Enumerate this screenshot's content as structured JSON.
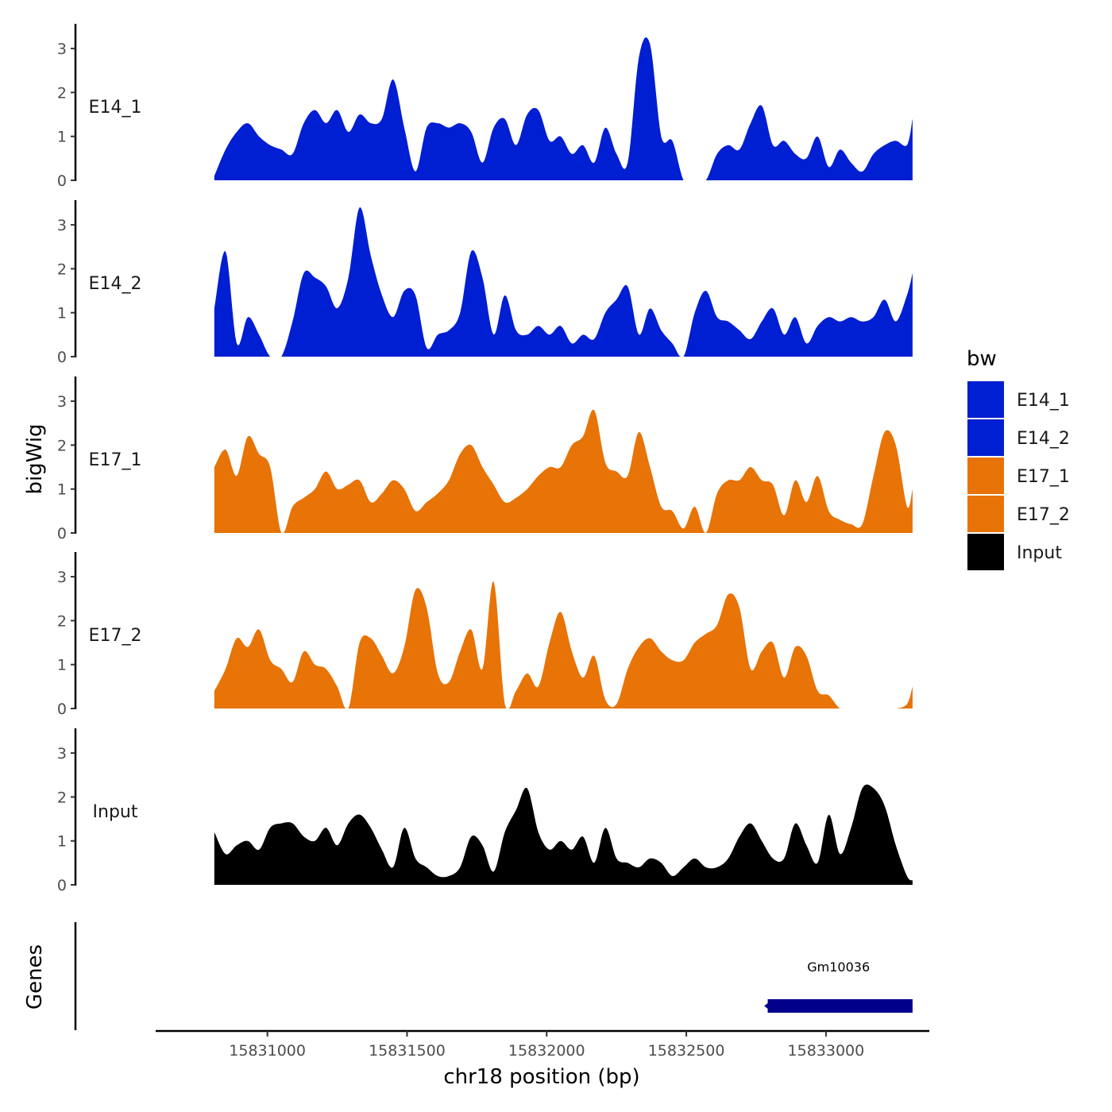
{
  "chart_data": {
    "type": "area",
    "xlabel": "chr18 position (bp)",
    "ylabel": "bigWig",
    "genes_label": "Genes",
    "x_range": [
      15830600,
      15833370
    ],
    "y_range": [
      0,
      3.5
    ],
    "x_ticks": [
      15831000,
      15831500,
      15832000,
      15832500,
      15833000
    ],
    "x_tick_labels": [
      "15831000",
      "15831500",
      "15832000",
      "15832500",
      "15833000"
    ],
    "y_ticks": [
      0,
      1,
      2,
      3
    ],
    "y_tick_labels": [
      "0",
      "1",
      "2",
      "3"
    ],
    "legend": {
      "title": "bw",
      "entries": [
        {
          "label": "E14_1",
          "color": "#001ed2"
        },
        {
          "label": "E14_2",
          "color": "#001ed2"
        },
        {
          "label": "E17_1",
          "color": "#e87306"
        },
        {
          "label": "E17_2",
          "color": "#e87306"
        },
        {
          "label": "Input",
          "color": "#000000"
        }
      ]
    },
    "x": [
      15830810,
      15830850,
      15830890,
      15830930,
      15830970,
      15831010,
      15831050,
      15831090,
      15831130,
      15831170,
      15831210,
      15831250,
      15831290,
      15831330,
      15831370,
      15831410,
      15831450,
      15831490,
      15831530,
      15831570,
      15831610,
      15831650,
      15831690,
      15831730,
      15831770,
      15831810,
      15831850,
      15831890,
      15831930,
      15831970,
      15832010,
      15832050,
      15832090,
      15832130,
      15832170,
      15832210,
      15832250,
      15832290,
      15832330,
      15832370,
      15832410,
      15832450,
      15832490,
      15832530,
      15832570,
      15832610,
      15832650,
      15832690,
      15832730,
      15832770,
      15832810,
      15832850,
      15832890,
      15832930,
      15832970,
      15833010,
      15833050,
      15833090,
      15833130,
      15833170,
      15833210,
      15833250,
      15833290,
      15833310
    ],
    "series": [
      {
        "name": "E14_1",
        "color": "#001ed2",
        "values": [
          0.1,
          0.7,
          1.1,
          1.3,
          1.0,
          0.8,
          0.7,
          0.6,
          1.3,
          1.6,
          1.3,
          1.6,
          1.1,
          1.5,
          1.3,
          1.4,
          2.3,
          1.2,
          0.2,
          1.2,
          1.3,
          1.2,
          1.3,
          1.1,
          0.4,
          1.2,
          1.4,
          0.8,
          1.5,
          1.6,
          0.9,
          1.0,
          0.6,
          0.8,
          0.4,
          1.2,
          0.6,
          0.4,
          2.8,
          3.1,
          1.0,
          0.9,
          0.0,
          0.0,
          0.0,
          0.6,
          0.8,
          0.7,
          1.3,
          1.7,
          0.8,
          0.9,
          0.6,
          0.5,
          1.0,
          0.3,
          0.7,
          0.4,
          0.2,
          0.6,
          0.8,
          0.9,
          0.8,
          1.4
        ]
      },
      {
        "name": "E14_2",
        "color": "#001ed2",
        "values": [
          1.1,
          2.4,
          0.3,
          0.9,
          0.5,
          0.0,
          0.0,
          0.8,
          1.9,
          1.8,
          1.6,
          1.1,
          1.8,
          3.4,
          2.3,
          1.4,
          0.9,
          1.5,
          1.4,
          0.2,
          0.5,
          0.6,
          1.0,
          2.4,
          1.8,
          0.5,
          1.4,
          0.6,
          0.5,
          0.7,
          0.5,
          0.7,
          0.3,
          0.5,
          0.4,
          1.0,
          1.3,
          1.6,
          0.5,
          1.1,
          0.6,
          0.3,
          0.0,
          1.0,
          1.5,
          0.9,
          0.8,
          0.6,
          0.4,
          0.8,
          1.1,
          0.5,
          0.9,
          0.3,
          0.7,
          0.9,
          0.8,
          0.9,
          0.8,
          0.9,
          1.3,
          0.8,
          1.4,
          1.9
        ]
      },
      {
        "name": "E17_1",
        "color": "#e87306",
        "values": [
          1.5,
          1.9,
          1.3,
          2.2,
          1.8,
          1.5,
          0.0,
          0.6,
          0.8,
          1.0,
          1.4,
          1.0,
          1.1,
          1.2,
          0.7,
          0.9,
          1.2,
          1.0,
          0.5,
          0.7,
          0.9,
          1.2,
          1.8,
          2.0,
          1.5,
          1.1,
          0.7,
          0.8,
          1.0,
          1.3,
          1.5,
          1.5,
          2.0,
          2.2,
          2.8,
          1.6,
          1.4,
          1.3,
          2.3,
          1.5,
          0.6,
          0.5,
          0.1,
          0.6,
          0.0,
          0.9,
          1.2,
          1.2,
          1.5,
          1.2,
          1.1,
          0.4,
          1.2,
          0.7,
          1.3,
          0.5,
          0.3,
          0.2,
          0.2,
          1.3,
          2.3,
          2.0,
          0.6,
          1.0
        ]
      },
      {
        "name": "E17_2",
        "color": "#e87306",
        "values": [
          0.4,
          0.9,
          1.6,
          1.4,
          1.8,
          1.1,
          0.9,
          0.6,
          1.3,
          1.0,
          0.9,
          0.5,
          0.0,
          1.5,
          1.6,
          1.2,
          0.8,
          1.4,
          2.7,
          2.3,
          0.8,
          0.6,
          1.3,
          1.8,
          0.9,
          2.9,
          0.1,
          0.4,
          0.8,
          0.5,
          1.5,
          2.2,
          1.3,
          0.7,
          1.2,
          0.2,
          0.1,
          0.9,
          1.4,
          1.6,
          1.3,
          1.1,
          1.1,
          1.5,
          1.7,
          1.9,
          2.6,
          2.3,
          0.9,
          1.3,
          1.5,
          0.7,
          1.4,
          1.2,
          0.4,
          0.3,
          0.0,
          0.0,
          0.0,
          0.0,
          0.0,
          0.0,
          0.1,
          0.5
        ]
      },
      {
        "name": "Input",
        "color": "#000000",
        "values": [
          1.2,
          0.7,
          0.9,
          1.0,
          0.8,
          1.3,
          1.4,
          1.4,
          1.1,
          1.0,
          1.3,
          0.9,
          1.4,
          1.6,
          1.3,
          0.8,
          0.4,
          1.3,
          0.6,
          0.4,
          0.2,
          0.2,
          0.4,
          1.1,
          0.9,
          0.3,
          1.2,
          1.7,
          2.2,
          1.2,
          0.8,
          1.0,
          0.8,
          1.1,
          0.5,
          1.3,
          0.6,
          0.5,
          0.4,
          0.6,
          0.5,
          0.2,
          0.4,
          0.6,
          0.4,
          0.4,
          0.6,
          1.1,
          1.4,
          1.0,
          0.6,
          0.6,
          1.4,
          0.9,
          0.5,
          1.6,
          0.7,
          1.3,
          2.2,
          2.2,
          1.8,
          0.9,
          0.2,
          0.1
        ]
      }
    ],
    "genes": [
      {
        "name": "Gm10036",
        "start": 15832780,
        "end": 15833310,
        "color": "#00008b",
        "strand": "-"
      }
    ]
  }
}
